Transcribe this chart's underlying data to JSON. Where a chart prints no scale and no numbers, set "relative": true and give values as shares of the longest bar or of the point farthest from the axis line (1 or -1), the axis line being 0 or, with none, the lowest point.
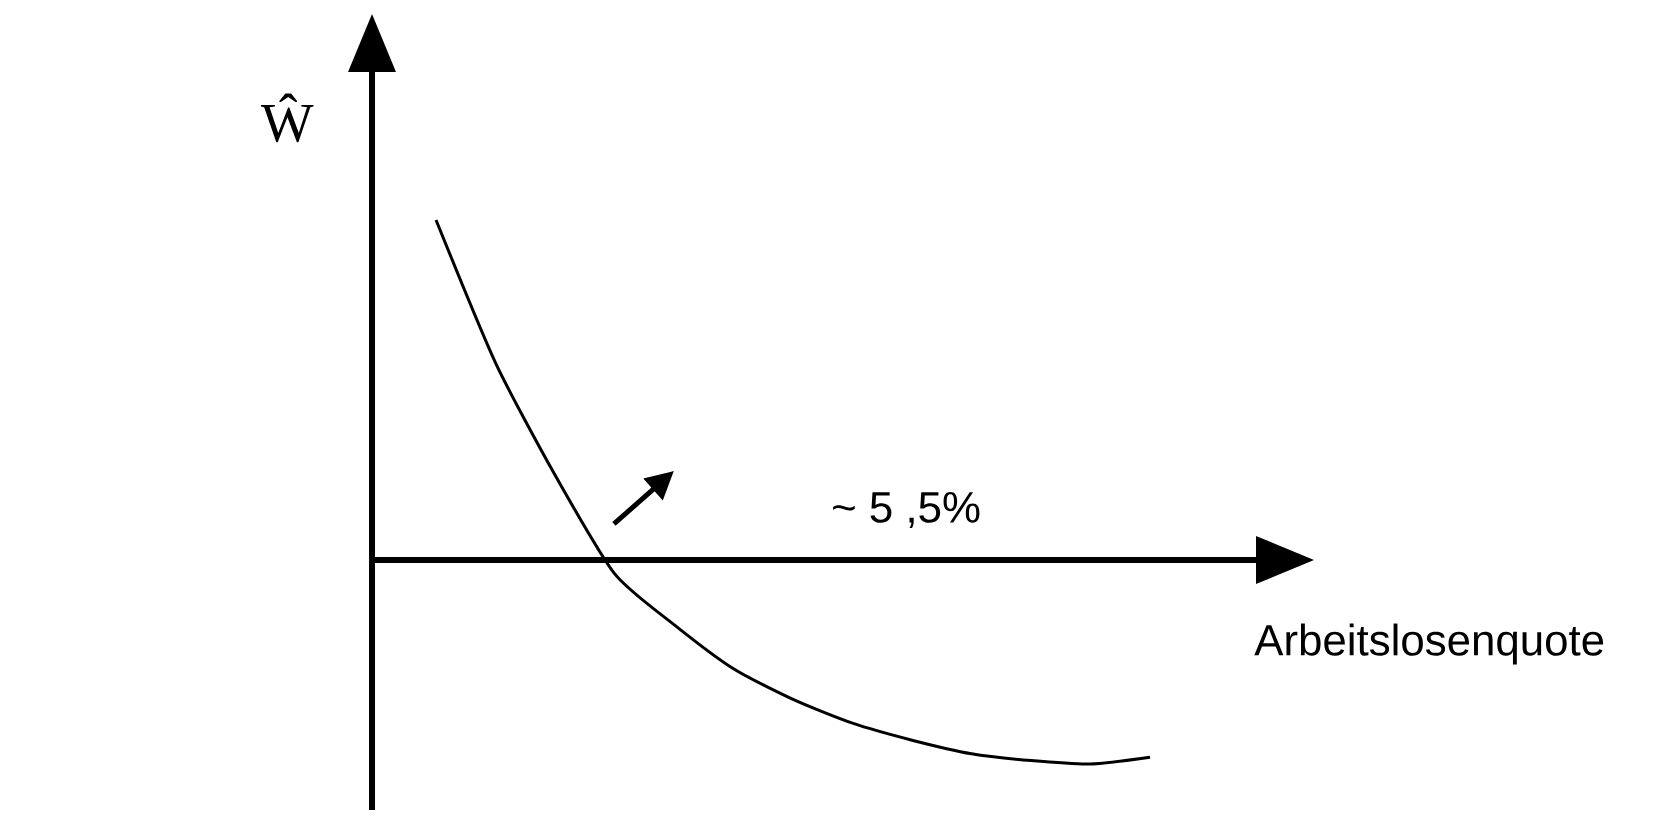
{
  "chart_data": {
    "type": "line",
    "relative": true,
    "xlabel": "Arbeitslosenquote",
    "ylabel": "Ŵ",
    "annotations": [
      "~ 5 ,5%"
    ],
    "categories": [
      null,
      null,
      null,
      null,
      null,
      null,
      null,
      null,
      null,
      null,
      null,
      null,
      null
    ],
    "color": "#000000",
    "values": [
      1,
      0.58,
      0.25,
      -0.04,
      -0.19,
      -0.32,
      -0.41,
      -0.48,
      -0.53,
      -0.57,
      -0.59,
      -0.6,
      -0.58
    ]
  }
}
